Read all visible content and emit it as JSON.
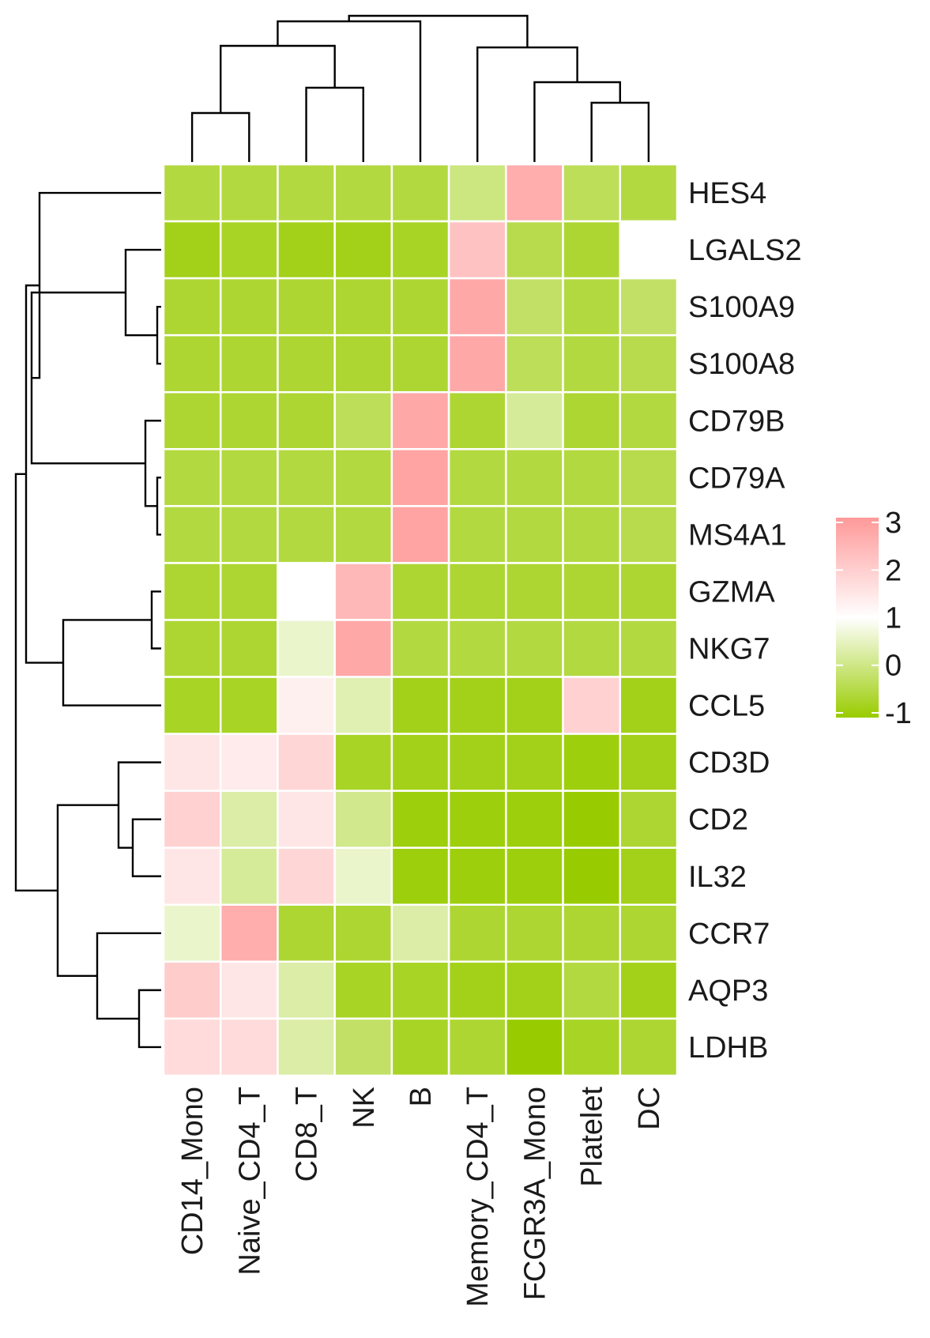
{
  "chart_data": {
    "type": "heatmap",
    "columns": [
      "CD14_Mono",
      "Naive_CD4_T",
      "CD8_T",
      "NK",
      "B",
      "Memory_CD4_T",
      "FCGR3A_Mono",
      "Platelet",
      "DC"
    ],
    "rows": [
      "HES4",
      "LGALS2",
      "S100A9",
      "S100A8",
      "CD79B",
      "CD79A",
      "MS4A1",
      "GZMA",
      "NKG7",
      "CCL5",
      "CD3D",
      "CD2",
      "IL32",
      "CCR7",
      "AQP3",
      "LDHB"
    ],
    "values": [
      [
        -0.5,
        -0.5,
        -0.5,
        -0.5,
        -0.5,
        0.0,
        2.6,
        -0.3,
        -0.5
      ],
      [
        -0.8,
        -0.7,
        -0.8,
        -0.8,
        -0.7,
        2.2,
        -0.4,
        -0.6,
        1.0
      ],
      [
        -0.6,
        -0.6,
        -0.6,
        -0.6,
        -0.6,
        2.7,
        -0.2,
        -0.5,
        -0.2
      ],
      [
        -0.6,
        -0.6,
        -0.6,
        -0.6,
        -0.6,
        2.7,
        -0.3,
        -0.5,
        -0.4
      ],
      [
        -0.6,
        -0.6,
        -0.6,
        -0.3,
        2.7,
        -0.6,
        0.2,
        -0.6,
        -0.5
      ],
      [
        -0.5,
        -0.5,
        -0.5,
        -0.5,
        2.8,
        -0.5,
        -0.5,
        -0.5,
        -0.4
      ],
      [
        -0.5,
        -0.5,
        -0.5,
        -0.5,
        2.8,
        -0.5,
        -0.5,
        -0.5,
        -0.4
      ],
      [
        -0.6,
        -0.6,
        1.0,
        2.4,
        -0.6,
        -0.6,
        -0.6,
        -0.6,
        -0.6
      ],
      [
        -0.6,
        -0.6,
        0.6,
        2.7,
        -0.5,
        -0.5,
        -0.5,
        -0.5,
        -0.5
      ],
      [
        -0.7,
        -0.7,
        1.3,
        0.4,
        -0.8,
        -0.8,
        -0.8,
        1.9,
        -0.8
      ],
      [
        1.5,
        1.4,
        1.8,
        -0.7,
        -0.8,
        -0.8,
        -0.8,
        -0.9,
        -0.8
      ],
      [
        1.9,
        0.3,
        1.5,
        0.1,
        -0.9,
        -0.9,
        -0.9,
        -1.0,
        -0.6
      ],
      [
        1.5,
        0.2,
        1.8,
        0.6,
        -0.9,
        -0.9,
        -0.9,
        -1.0,
        -0.8
      ],
      [
        0.6,
        2.6,
        -0.6,
        -0.6,
        0.3,
        -0.6,
        -0.6,
        -0.6,
        -0.6
      ],
      [
        2.0,
        1.5,
        0.3,
        -0.7,
        -0.7,
        -0.8,
        -0.8,
        -0.5,
        -0.8
      ],
      [
        1.7,
        1.7,
        0.3,
        -0.2,
        -0.7,
        -0.6,
        -1.1,
        -0.7,
        -0.6
      ]
    ],
    "scale": {
      "min": -1,
      "max": 3,
      "colors": [
        "#99cc00",
        "#ffffff",
        "#ff9999"
      ],
      "ticks": [
        "3",
        "2",
        "1",
        "0",
        "-1"
      ]
    },
    "row_dendrogram": true,
    "column_dendrogram": true,
    "legend_position": "right"
  }
}
